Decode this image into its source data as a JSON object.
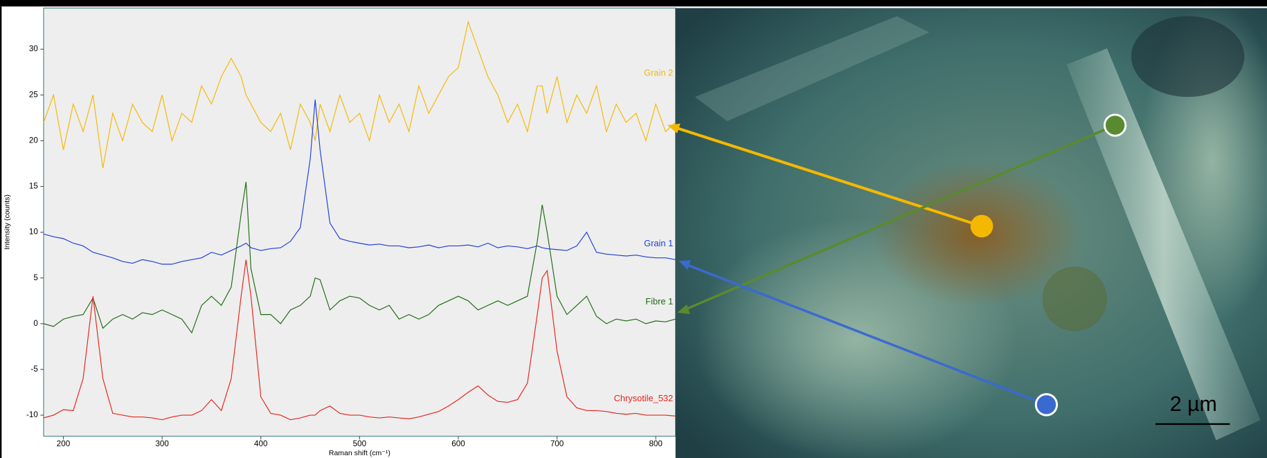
{
  "chart_data": {
    "type": "line",
    "x_label": "Raman shift (cm⁻¹)",
    "y_label": "Intensity (counts)",
    "xlim": [
      180,
      820
    ],
    "ylim": [
      -12.3,
      34.5
    ],
    "xticks": [
      200,
      300,
      400,
      500,
      600,
      700,
      800
    ],
    "yticks": [
      -10,
      -5,
      0,
      5,
      10,
      15,
      20,
      25,
      30
    ],
    "x": [
      180,
      190,
      200,
      210,
      220,
      230,
      240,
      250,
      260,
      270,
      280,
      290,
      300,
      310,
      320,
      330,
      340,
      350,
      360,
      370,
      380,
      385,
      390,
      400,
      410,
      420,
      430,
      440,
      450,
      455,
      460,
      470,
      480,
      490,
      500,
      510,
      520,
      530,
      540,
      550,
      560,
      570,
      580,
      590,
      600,
      610,
      620,
      630,
      640,
      650,
      660,
      670,
      680,
      685,
      690,
      700,
      710,
      720,
      730,
      740,
      750,
      760,
      770,
      780,
      790,
      800,
      810,
      820
    ],
    "series": [
      {
        "name": "Grain 2",
        "color": "#f5b800",
        "values": [
          22,
          25,
          19,
          24,
          21,
          25,
          17,
          23,
          20,
          24,
          22,
          21,
          25,
          20,
          23,
          22,
          26,
          24,
          27,
          29,
          27,
          25,
          24,
          22,
          21,
          23,
          19,
          24,
          22,
          20,
          24,
          21,
          25,
          22,
          23,
          20,
          25,
          22,
          24,
          21,
          26,
          23,
          25,
          27,
          28,
          33,
          30,
          27,
          25,
          22,
          24,
          21,
          26,
          26,
          23,
          27,
          22,
          25,
          23,
          26,
          21,
          24,
          22,
          23,
          20,
          24,
          21,
          22
        ]
      },
      {
        "name": "Grain 1",
        "color": "#1f3fd8",
        "values": [
          9.8,
          9.5,
          9.3,
          8.8,
          8.5,
          7.8,
          7.5,
          7.2,
          6.8,
          6.6,
          7,
          6.8,
          6.5,
          6.5,
          6.8,
          7,
          7.2,
          7.8,
          7.5,
          8,
          8.5,
          8.8,
          8.3,
          8,
          8.2,
          8.3,
          9,
          10.5,
          18,
          24.5,
          19,
          11,
          9.3,
          9,
          8.8,
          8.6,
          8.7,
          8.5,
          8.5,
          8.3,
          8.4,
          8.6,
          8.3,
          8.5,
          8.5,
          8.6,
          8.4,
          8.8,
          8.3,
          8.5,
          8.4,
          8.2,
          8.5,
          8.3,
          8.2,
          8.1,
          8,
          8.5,
          10,
          7.8,
          7.6,
          7.5,
          7.4,
          7.5,
          7.3,
          7.2,
          7.2,
          7
        ]
      },
      {
        "name": "Fibre 1",
        "color": "#1e6b12",
        "values": [
          0,
          -0.3,
          0.5,
          0.8,
          1,
          2.8,
          -0.5,
          0.5,
          1,
          0.5,
          1.2,
          1,
          1.5,
          1,
          0.5,
          -1,
          2,
          3,
          2,
          4,
          12,
          15.5,
          6,
          1,
          1,
          0,
          1.5,
          2,
          3,
          5,
          4.8,
          1.5,
          2.5,
          3,
          2.8,
          2,
          1.5,
          2,
          0.5,
          1,
          0.5,
          1,
          2,
          2.5,
          3,
          2.5,
          1.5,
          2,
          2.5,
          2,
          2.5,
          3,
          9,
          13,
          10,
          3,
          1,
          2,
          3,
          0.8,
          0,
          0.5,
          0.3,
          0.5,
          0,
          0.3,
          0.2,
          0.5
        ]
      },
      {
        "name": "Chrysotile_532",
        "color": "#e8231a",
        "values": [
          -10.3,
          -10,
          -9.4,
          -9.5,
          -6,
          3,
          -6,
          -9.8,
          -10,
          -10.2,
          -10.2,
          -10.3,
          -10.5,
          -10.2,
          -10,
          -10,
          -9.5,
          -8.3,
          -9.5,
          -6,
          3,
          7,
          3,
          -8,
          -9.8,
          -10,
          -10.5,
          -10.3,
          -10,
          -10,
          -9.5,
          -9,
          -9.8,
          -10,
          -10,
          -10.2,
          -10.3,
          -10.2,
          -10.3,
          -10.4,
          -10.2,
          -9.9,
          -9.6,
          -9,
          -8.3,
          -7.5,
          -6.8,
          -7.8,
          -8.5,
          -8.6,
          -8.3,
          -6.5,
          1,
          5,
          5.8,
          -3,
          -8,
          -9.2,
          -9.5,
          -9.5,
          -9.6,
          -9.8,
          -9.9,
          -9.8,
          -10,
          -10,
          -10,
          -10.1
        ]
      }
    ]
  },
  "image_annotation": {
    "scale_bar": "2 µm"
  }
}
